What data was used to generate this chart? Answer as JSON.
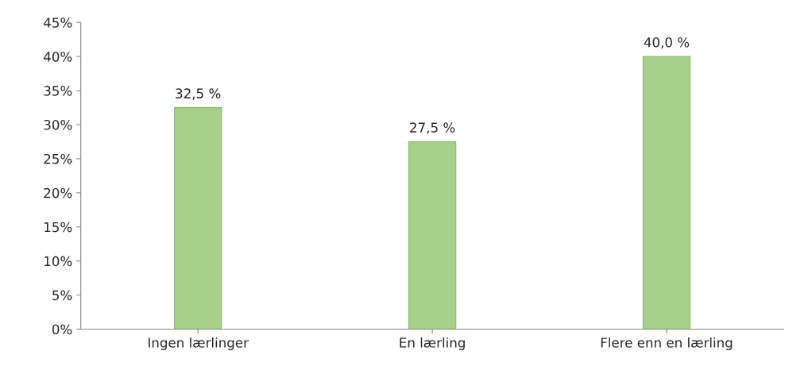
{
  "chart_data": {
    "type": "bar",
    "categories": [
      "Ingen lærlinger",
      "En lærling",
      "Flere enn en lærling"
    ],
    "values": [
      32.5,
      27.5,
      40.0
    ],
    "value_labels": [
      "32,5 %",
      "27,5 %",
      "40,0 %"
    ],
    "color": "#a8d08d",
    "ylim": [
      0,
      45
    ],
    "yticks": [
      {
        "value": 0,
        "label": "0%"
      },
      {
        "value": 5,
        "label": "5%"
      },
      {
        "value": 10,
        "label": "10%"
      },
      {
        "value": 15,
        "label": "15%"
      },
      {
        "value": 20,
        "label": "20%"
      },
      {
        "value": 25,
        "label": "25%"
      },
      {
        "value": 30,
        "label": "30%"
      },
      {
        "value": 35,
        "label": "35%"
      },
      {
        "value": 40,
        "label": "40%"
      },
      {
        "value": 45,
        "label": "45%"
      }
    ],
    "grid": false,
    "legend": false
  }
}
